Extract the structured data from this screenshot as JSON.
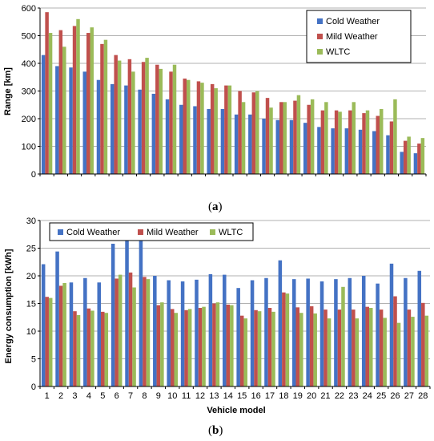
{
  "colors": {
    "cold": "#4472C4",
    "mild": "#C0504D",
    "wltc": "#9BBB59"
  },
  "chart_data": [
    {
      "type": "bar",
      "panel_label": "(a)",
      "panel_letter": "a",
      "title": "",
      "xlabel": "",
      "ylabel": "Range [km]",
      "ylim": [
        0,
        600
      ],
      "yticks": [
        0,
        100,
        200,
        300,
        400,
        500,
        600
      ],
      "grid": true,
      "legend": "top-right",
      "categories": [
        "1",
        "2",
        "3",
        "4",
        "5",
        "6",
        "7",
        "8",
        "9",
        "10",
        "11",
        "12",
        "13",
        "14",
        "15",
        "16",
        "17",
        "18",
        "19",
        "20",
        "21",
        "22",
        "23",
        "24",
        "25",
        "26",
        "27",
        "28"
      ],
      "series": [
        {
          "name": "Cold Weather",
          "color_key": "cold",
          "values": [
            430,
            390,
            385,
            370,
            340,
            325,
            320,
            305,
            290,
            270,
            250,
            245,
            235,
            235,
            215,
            215,
            200,
            195,
            195,
            185,
            170,
            165,
            165,
            160,
            155,
            140,
            80,
            75
          ]
        },
        {
          "name": "Mild Weather",
          "color_key": "mild",
          "values": [
            585,
            520,
            535,
            510,
            470,
            430,
            415,
            405,
            395,
            370,
            345,
            335,
            325,
            320,
            300,
            295,
            275,
            260,
            265,
            250,
            230,
            230,
            230,
            220,
            210,
            190,
            120,
            110
          ]
        },
        {
          "name": "WLTC",
          "color_key": "wltc",
          "values": [
            510,
            460,
            560,
            530,
            485,
            410,
            370,
            420,
            380,
            395,
            340,
            330,
            310,
            320,
            260,
            300,
            240,
            260,
            285,
            270,
            260,
            225,
            260,
            230,
            235,
            270,
            135,
            130
          ]
        }
      ]
    },
    {
      "type": "bar",
      "panel_label": "(b)",
      "panel_letter": "b",
      "title": "",
      "xlabel": "Vehicle model",
      "ylabel": "Energy consumption [kWh]",
      "ylim": [
        0,
        30
      ],
      "yticks": [
        0,
        5,
        10,
        15,
        20,
        25,
        30
      ],
      "grid": true,
      "legend": "top-left",
      "categories": [
        "1",
        "2",
        "3",
        "4",
        "5",
        "6",
        "7",
        "8",
        "9",
        "10",
        "11",
        "12",
        "13",
        "14",
        "15",
        "16",
        "17",
        "18",
        "19",
        "20",
        "21",
        "22",
        "23",
        "24",
        "25",
        "26",
        "27",
        "28"
      ],
      "series": [
        {
          "name": "Cold Weather",
          "color_key": "cold",
          "values": [
            22.1,
            24.4,
            18.8,
            19.6,
            18.8,
            25.8,
            27.0,
            26.3,
            20.0,
            19.2,
            19.0,
            19.3,
            20.3,
            20.2,
            17.8,
            19.2,
            19.6,
            22.8,
            19.4,
            19.5,
            19.0,
            19.4,
            19.6,
            20.0,
            18.6,
            22.2,
            19.6,
            20.9
          ]
        },
        {
          "name": "Mild Weather",
          "color_key": "mild",
          "values": [
            16.2,
            18.2,
            13.6,
            14.1,
            13.5,
            19.5,
            20.6,
            19.8,
            14.7,
            14.0,
            13.8,
            14.2,
            15.0,
            14.8,
            12.8,
            13.8,
            14.2,
            17.0,
            14.3,
            14.5,
            13.9,
            13.9,
            13.9,
            14.4,
            13.9,
            16.3,
            13.9,
            15.1
          ]
        },
        {
          "name": "WLTC",
          "color_key": "wltc",
          "values": [
            16.0,
            18.7,
            12.9,
            13.7,
            13.3,
            20.2,
            17.9,
            19.4,
            15.2,
            13.3,
            14.0,
            14.4,
            15.2,
            14.7,
            12.3,
            13.6,
            13.5,
            16.8,
            13.3,
            13.2,
            12.3,
            18.0,
            12.3,
            14.2,
            12.4,
            11.5,
            12.6,
            12.8
          ]
        }
      ]
    }
  ]
}
